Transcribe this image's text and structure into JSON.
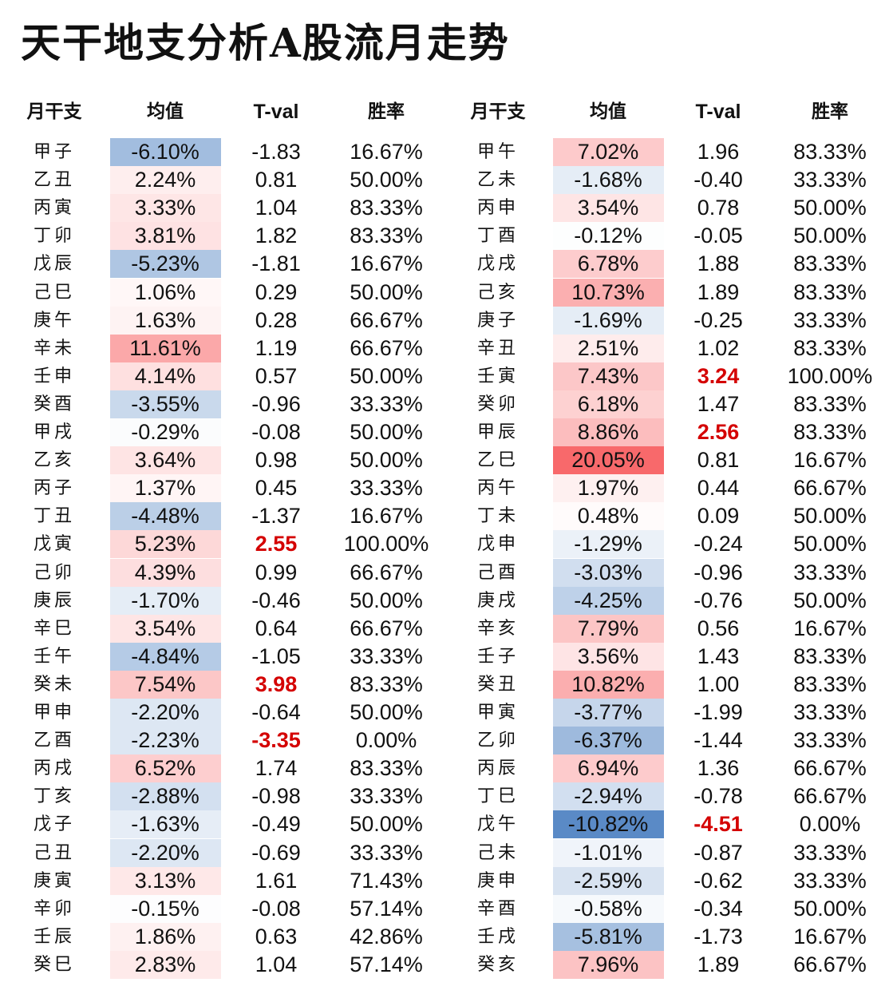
{
  "title": "天干地支分析A股流月走势",
  "headers": [
    "月干支",
    "均值",
    "T-val",
    "胜率"
  ],
  "colors": {
    "negative_max": "#5A8AC6",
    "mid": "#FFFFFF",
    "positive_max": "#F8696B",
    "highlight_text": "#D40000"
  },
  "left": [
    [
      "甲子",
      "-6.10%",
      "-1.83",
      "16.67%"
    ],
    [
      "乙丑",
      "2.24%",
      "0.81",
      "50.00%"
    ],
    [
      "丙寅",
      "3.33%",
      "1.04",
      "83.33%"
    ],
    [
      "丁卯",
      "3.81%",
      "1.82",
      "83.33%"
    ],
    [
      "戊辰",
      "-5.23%",
      "-1.81",
      "16.67%"
    ],
    [
      "己巳",
      "1.06%",
      "0.29",
      "50.00%"
    ],
    [
      "庚午",
      "1.63%",
      "0.28",
      "66.67%"
    ],
    [
      "辛未",
      "11.61%",
      "1.19",
      "66.67%"
    ],
    [
      "壬申",
      "4.14%",
      "0.57",
      "50.00%"
    ],
    [
      "癸酉",
      "-3.55%",
      "-0.96",
      "33.33%"
    ],
    [
      "甲戌",
      "-0.29%",
      "-0.08",
      "50.00%"
    ],
    [
      "乙亥",
      "3.64%",
      "0.98",
      "50.00%"
    ],
    [
      "丙子",
      "1.37%",
      "0.45",
      "33.33%"
    ],
    [
      "丁丑",
      "-4.48%",
      "-1.37",
      "16.67%"
    ],
    [
      "戊寅",
      "5.23%",
      "2.55",
      "100.00%"
    ],
    [
      "己卯",
      "4.39%",
      "0.99",
      "66.67%"
    ],
    [
      "庚辰",
      "-1.70%",
      "-0.46",
      "50.00%"
    ],
    [
      "辛巳",
      "3.54%",
      "0.64",
      "66.67%"
    ],
    [
      "壬午",
      "-4.84%",
      "-1.05",
      "33.33%"
    ],
    [
      "癸未",
      "7.54%",
      "3.98",
      "83.33%"
    ],
    [
      "甲申",
      "-2.20%",
      "-0.64",
      "50.00%"
    ],
    [
      "乙酉",
      "-2.23%",
      "-3.35",
      "0.00%"
    ],
    [
      "丙戌",
      "6.52%",
      "1.74",
      "83.33%"
    ],
    [
      "丁亥",
      "-2.88%",
      "-0.98",
      "33.33%"
    ],
    [
      "戊子",
      "-1.63%",
      "-0.49",
      "50.00%"
    ],
    [
      "己丑",
      "-2.20%",
      "-0.69",
      "33.33%"
    ],
    [
      "庚寅",
      "3.13%",
      "1.61",
      "71.43%"
    ],
    [
      "辛卯",
      "-0.15%",
      "-0.08",
      "57.14%"
    ],
    [
      "壬辰",
      "1.86%",
      "0.63",
      "42.86%"
    ],
    [
      "癸巳",
      "2.83%",
      "1.04",
      "57.14%"
    ]
  ],
  "right": [
    [
      "甲午",
      "7.02%",
      "1.96",
      "83.33%"
    ],
    [
      "乙未",
      "-1.68%",
      "-0.40",
      "33.33%"
    ],
    [
      "丙申",
      "3.54%",
      "0.78",
      "50.00%"
    ],
    [
      "丁酉",
      "-0.12%",
      "-0.05",
      "50.00%"
    ],
    [
      "戊戌",
      "6.78%",
      "1.88",
      "83.33%"
    ],
    [
      "己亥",
      "10.73%",
      "1.89",
      "83.33%"
    ],
    [
      "庚子",
      "-1.69%",
      "-0.25",
      "33.33%"
    ],
    [
      "辛丑",
      "2.51%",
      "1.02",
      "83.33%"
    ],
    [
      "壬寅",
      "7.43%",
      "3.24",
      "100.00%"
    ],
    [
      "癸卯",
      "6.18%",
      "1.47",
      "83.33%"
    ],
    [
      "甲辰",
      "8.86%",
      "2.56",
      "83.33%"
    ],
    [
      "乙巳",
      "20.05%",
      "0.81",
      "16.67%"
    ],
    [
      "丙午",
      "1.97%",
      "0.44",
      "66.67%"
    ],
    [
      "丁未",
      "0.48%",
      "0.09",
      "50.00%"
    ],
    [
      "戊申",
      "-1.29%",
      "-0.24",
      "50.00%"
    ],
    [
      "己酉",
      "-3.03%",
      "-0.96",
      "33.33%"
    ],
    [
      "庚戌",
      "-4.25%",
      "-0.76",
      "50.00%"
    ],
    [
      "辛亥",
      "7.79%",
      "0.56",
      "16.67%"
    ],
    [
      "壬子",
      "3.56%",
      "1.43",
      "83.33%"
    ],
    [
      "癸丑",
      "10.82%",
      "1.00",
      "83.33%"
    ],
    [
      "甲寅",
      "-3.77%",
      "-1.99",
      "33.33%"
    ],
    [
      "乙卯",
      "-6.37%",
      "-1.44",
      "33.33%"
    ],
    [
      "丙辰",
      "6.94%",
      "1.36",
      "66.67%"
    ],
    [
      "丁巳",
      "-2.94%",
      "-0.78",
      "66.67%"
    ],
    [
      "戊午",
      "-10.82%",
      "-4.51",
      "0.00%"
    ],
    [
      "己未",
      "-1.01%",
      "-0.87",
      "33.33%"
    ],
    [
      "庚申",
      "-2.59%",
      "-0.62",
      "33.33%"
    ],
    [
      "辛酉",
      "-0.58%",
      "-0.34",
      "50.00%"
    ],
    [
      "壬戌",
      "-5.81%",
      "-1.73",
      "16.67%"
    ],
    [
      "癸亥",
      "7.96%",
      "1.89",
      "66.67%"
    ]
  ]
}
